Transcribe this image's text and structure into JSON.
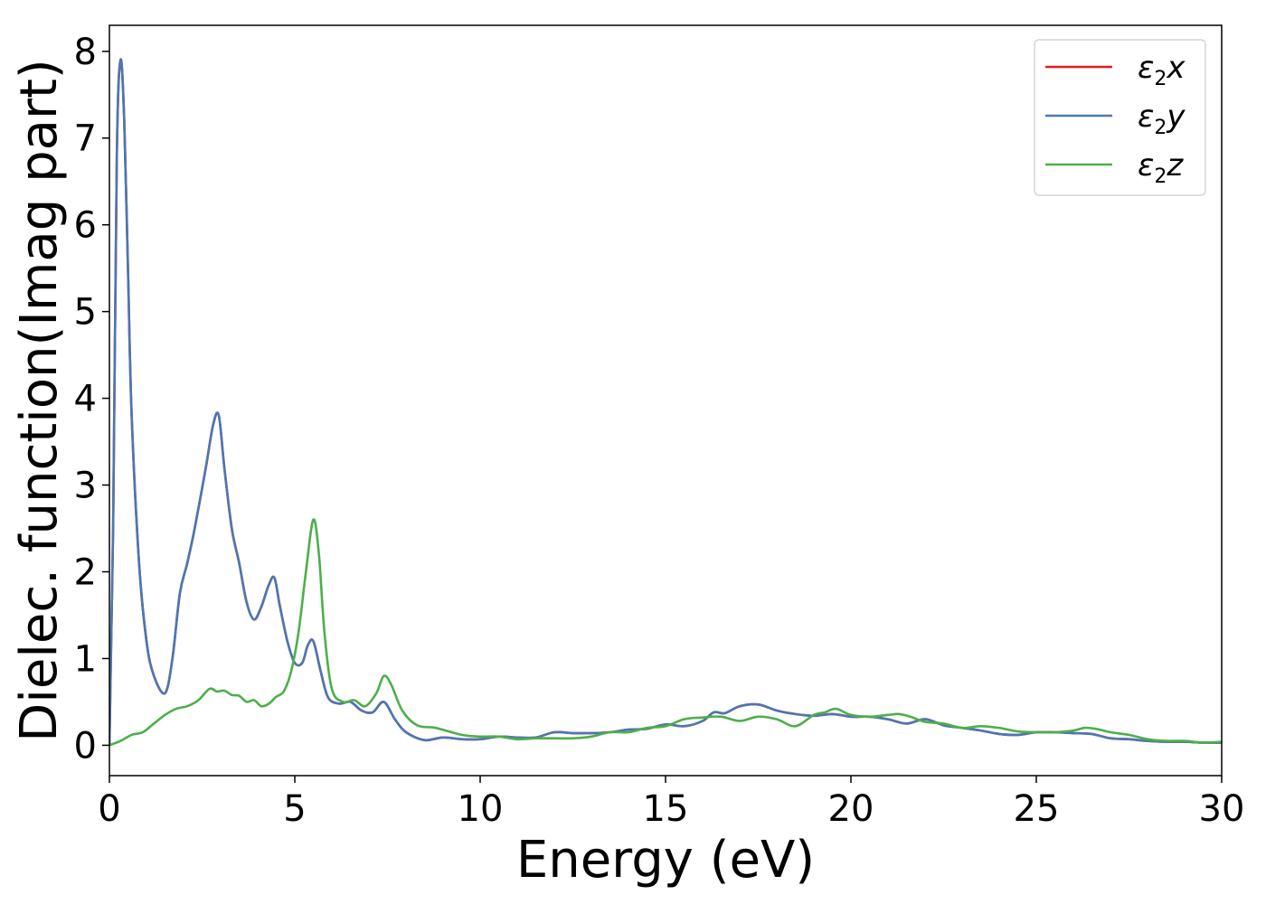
{
  "chart_data": {
    "type": "line",
    "title": "",
    "xlabel": "Energy (eV)",
    "ylabel": "Dielec. function(Imag part)",
    "xlim": [
      0,
      30
    ],
    "ylim": [
      -0.35,
      8.3
    ],
    "xticks": [
      "0",
      "5",
      "10",
      "15",
      "20",
      "25",
      "30"
    ],
    "xtick_values": [
      0,
      5,
      10,
      15,
      20,
      25,
      30
    ],
    "yticks": [
      "0",
      "1",
      "2",
      "3",
      "4",
      "5",
      "6",
      "7",
      "8"
    ],
    "ytick_values": [
      0,
      1,
      2,
      3,
      4,
      5,
      6,
      7,
      8
    ],
    "grid": false,
    "legend_position": "top-right",
    "series": [
      {
        "name": "ε2x",
        "legend": {
          "base": "ε",
          "sub": "2",
          "suffix": "x"
        },
        "color": "#e41a1c",
        "x": [
          0,
          0.1,
          0.2,
          0.3,
          0.4,
          0.5,
          0.6,
          0.8,
          1.0,
          1.2,
          1.5,
          1.7,
          1.9,
          2.1,
          2.3,
          2.6,
          2.8,
          2.95,
          3.1,
          3.3,
          3.5,
          3.7,
          3.9,
          4.1,
          4.3,
          4.45,
          4.6,
          4.8,
          5.0,
          5.2,
          5.35,
          5.5,
          5.7,
          5.9,
          6.2,
          6.5,
          6.8,
          7.1,
          7.4,
          7.7,
          8.0,
          8.5,
          9.0,
          9.5,
          10.0,
          10.5,
          11.0,
          11.5,
          12.0,
          12.5,
          13.0,
          13.5,
          14.0,
          14.5,
          15.0,
          15.5,
          16.0,
          16.3,
          16.6,
          17.0,
          17.5,
          18.0,
          18.5,
          19.0,
          19.5,
          20.0,
          20.5,
          21.0,
          21.5,
          22.0,
          22.5,
          23.0,
          23.5,
          24.0,
          24.5,
          25.0,
          25.5,
          26.0,
          26.5,
          27.0,
          27.5,
          28.0,
          28.5,
          29.0,
          29.5,
          30.0
        ],
        "y": [
          0.0,
          2.5,
          6.8,
          7.9,
          7.2,
          5.5,
          3.8,
          2.1,
          1.2,
          0.8,
          0.6,
          1.0,
          1.75,
          2.1,
          2.5,
          3.2,
          3.7,
          3.8,
          3.2,
          2.5,
          2.1,
          1.65,
          1.45,
          1.6,
          1.85,
          1.93,
          1.6,
          1.2,
          0.95,
          0.95,
          1.15,
          1.2,
          0.85,
          0.55,
          0.48,
          0.5,
          0.4,
          0.38,
          0.5,
          0.3,
          0.15,
          0.06,
          0.09,
          0.07,
          0.07,
          0.1,
          0.09,
          0.09,
          0.15,
          0.14,
          0.14,
          0.15,
          0.18,
          0.19,
          0.24,
          0.22,
          0.28,
          0.38,
          0.37,
          0.45,
          0.47,
          0.4,
          0.36,
          0.34,
          0.36,
          0.33,
          0.33,
          0.3,
          0.25,
          0.3,
          0.23,
          0.2,
          0.17,
          0.13,
          0.12,
          0.15,
          0.15,
          0.14,
          0.13,
          0.08,
          0.07,
          0.05,
          0.04,
          0.04,
          0.03,
          0.03
        ]
      },
      {
        "name": "ε2y",
        "legend": {
          "base": "ε",
          "sub": "2",
          "suffix": "y"
        },
        "color": "#4a78b3",
        "x": [
          0,
          0.1,
          0.2,
          0.3,
          0.4,
          0.5,
          0.6,
          0.8,
          1.0,
          1.2,
          1.5,
          1.7,
          1.9,
          2.1,
          2.3,
          2.6,
          2.8,
          2.95,
          3.1,
          3.3,
          3.5,
          3.7,
          3.9,
          4.1,
          4.3,
          4.45,
          4.6,
          4.8,
          5.0,
          5.2,
          5.35,
          5.5,
          5.7,
          5.9,
          6.2,
          6.5,
          6.8,
          7.1,
          7.4,
          7.7,
          8.0,
          8.5,
          9.0,
          9.5,
          10.0,
          10.5,
          11.0,
          11.5,
          12.0,
          12.5,
          13.0,
          13.5,
          14.0,
          14.5,
          15.0,
          15.5,
          16.0,
          16.3,
          16.6,
          17.0,
          17.5,
          18.0,
          18.5,
          19.0,
          19.5,
          20.0,
          20.5,
          21.0,
          21.5,
          22.0,
          22.5,
          23.0,
          23.5,
          24.0,
          24.5,
          25.0,
          25.5,
          26.0,
          26.5,
          27.0,
          27.5,
          28.0,
          28.5,
          29.0,
          29.5,
          30.0
        ],
        "y": [
          0.0,
          2.5,
          6.8,
          7.9,
          7.2,
          5.5,
          3.8,
          2.1,
          1.2,
          0.8,
          0.6,
          1.0,
          1.75,
          2.1,
          2.5,
          3.2,
          3.7,
          3.8,
          3.2,
          2.5,
          2.1,
          1.65,
          1.45,
          1.6,
          1.85,
          1.93,
          1.6,
          1.2,
          0.95,
          0.95,
          1.15,
          1.2,
          0.85,
          0.55,
          0.48,
          0.5,
          0.4,
          0.38,
          0.5,
          0.3,
          0.15,
          0.06,
          0.09,
          0.07,
          0.07,
          0.1,
          0.09,
          0.09,
          0.15,
          0.14,
          0.14,
          0.15,
          0.18,
          0.19,
          0.24,
          0.22,
          0.28,
          0.38,
          0.37,
          0.45,
          0.47,
          0.4,
          0.36,
          0.34,
          0.36,
          0.33,
          0.33,
          0.3,
          0.25,
          0.3,
          0.23,
          0.2,
          0.17,
          0.13,
          0.12,
          0.15,
          0.15,
          0.14,
          0.13,
          0.08,
          0.07,
          0.05,
          0.04,
          0.04,
          0.03,
          0.03
        ]
      },
      {
        "name": "ε2z",
        "legend": {
          "base": "ε",
          "sub": "2",
          "suffix": "z"
        },
        "color": "#4daf4a",
        "x": [
          0,
          0.3,
          0.6,
          0.9,
          1.2,
          1.5,
          1.8,
          2.1,
          2.4,
          2.7,
          2.9,
          3.1,
          3.3,
          3.5,
          3.7,
          3.9,
          4.1,
          4.3,
          4.5,
          4.7,
          4.9,
          5.1,
          5.3,
          5.5,
          5.65,
          5.8,
          6.0,
          6.3,
          6.6,
          6.9,
          7.2,
          7.4,
          7.6,
          7.9,
          8.3,
          8.8,
          9.5,
          10.0,
          10.5,
          11.0,
          11.5,
          12.0,
          12.5,
          13.0,
          13.5,
          14.0,
          14.5,
          15.0,
          15.5,
          16.0,
          16.5,
          17.0,
          17.5,
          18.0,
          18.5,
          19.0,
          19.3,
          19.6,
          20.0,
          20.5,
          21.0,
          21.3,
          21.6,
          22.0,
          22.5,
          23.0,
          23.5,
          24.0,
          24.5,
          25.0,
          25.5,
          26.0,
          26.3,
          26.6,
          27.0,
          27.5,
          28.0,
          28.5,
          29.0,
          29.5,
          30.0
        ],
        "y": [
          0.0,
          0.05,
          0.12,
          0.15,
          0.25,
          0.35,
          0.42,
          0.45,
          0.52,
          0.65,
          0.62,
          0.63,
          0.58,
          0.57,
          0.5,
          0.52,
          0.45,
          0.48,
          0.56,
          0.62,
          0.85,
          1.3,
          2.0,
          2.6,
          2.2,
          1.3,
          0.65,
          0.5,
          0.52,
          0.45,
          0.6,
          0.8,
          0.7,
          0.4,
          0.23,
          0.2,
          0.12,
          0.1,
          0.1,
          0.07,
          0.08,
          0.08,
          0.08,
          0.1,
          0.15,
          0.15,
          0.2,
          0.22,
          0.3,
          0.32,
          0.33,
          0.28,
          0.33,
          0.3,
          0.22,
          0.35,
          0.38,
          0.42,
          0.35,
          0.33,
          0.35,
          0.36,
          0.33,
          0.27,
          0.25,
          0.2,
          0.22,
          0.2,
          0.16,
          0.15,
          0.15,
          0.17,
          0.2,
          0.19,
          0.15,
          0.12,
          0.07,
          0.05,
          0.05,
          0.03,
          0.04
        ]
      }
    ]
  }
}
